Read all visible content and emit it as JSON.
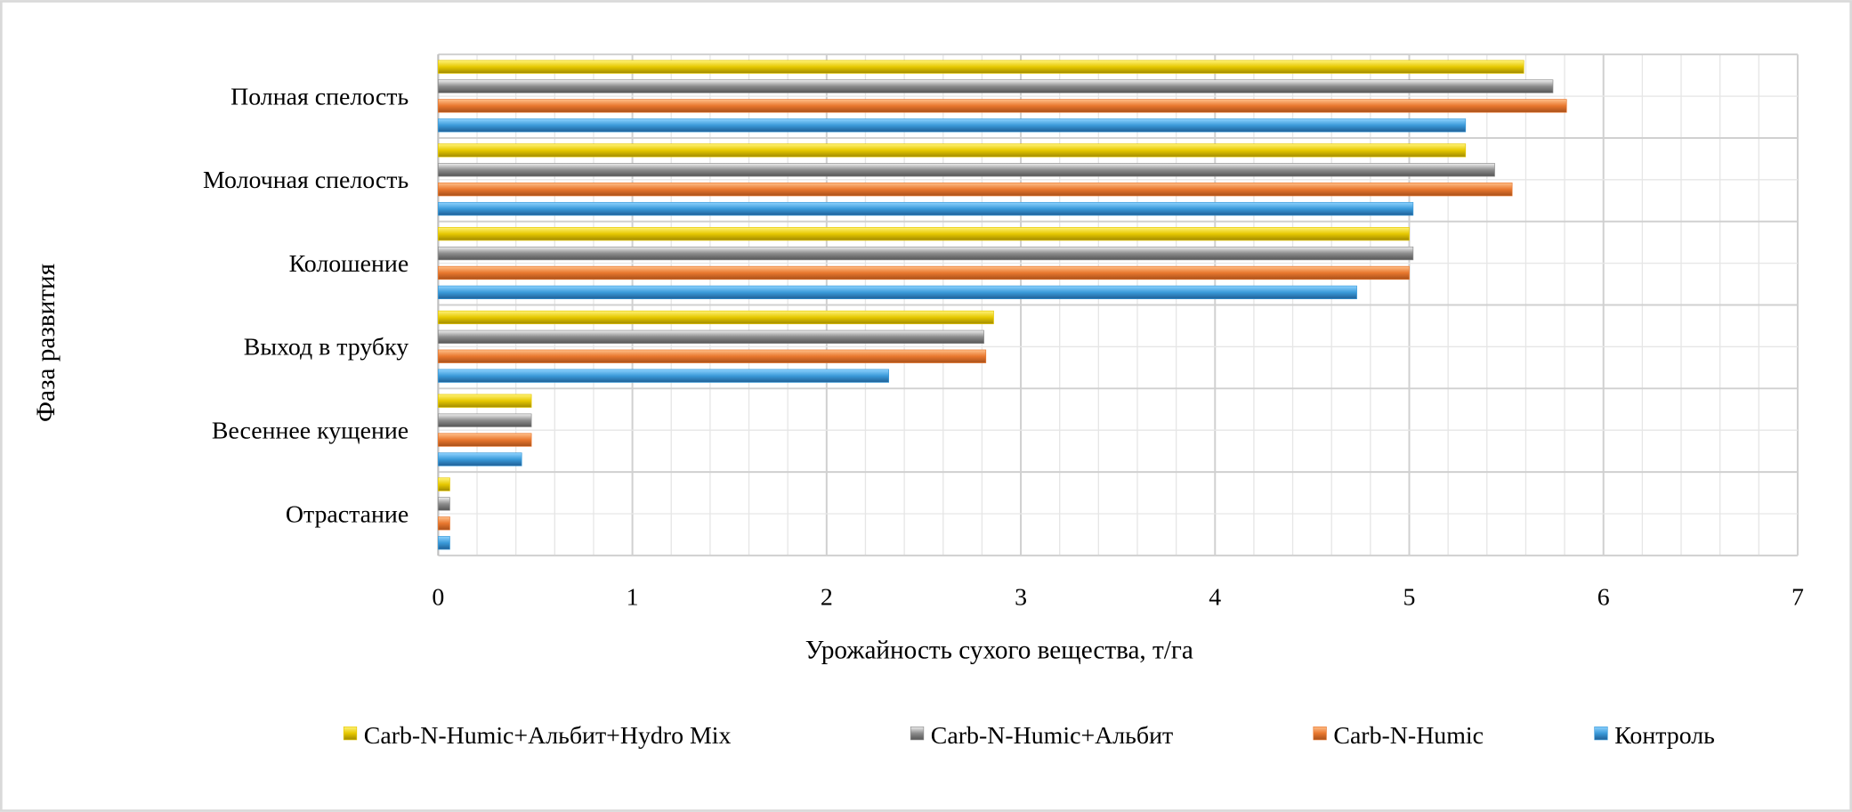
{
  "chart_data": {
    "type": "bar",
    "orientation": "horizontal",
    "title": "",
    "xlabel": "Урожайность сухого вещества, т/га",
    "ylabel": "Фаза развития",
    "xlim": [
      0,
      7
    ],
    "xticks": [
      "0",
      "1",
      "2",
      "3",
      "4",
      "5",
      "6",
      "7"
    ],
    "grid": true,
    "legend_position": "bottom",
    "categories": [
      "Отрастание",
      "Весеннее кущение",
      "Выход в трубку",
      "Колошение",
      "Молочная спелость",
      "Полная спелость"
    ],
    "series": [
      {
        "name": "Контроль",
        "color": "#3a9ad9",
        "values": [
          0.06,
          0.43,
          2.32,
          4.73,
          5.02,
          5.29
        ]
      },
      {
        "name": "Carb-N-Humic",
        "color": "#e8772e",
        "values": [
          0.06,
          0.48,
          2.82,
          5.0,
          5.53,
          5.81
        ]
      },
      {
        "name": "Carb-N-Humic+Альбит",
        "color": "#8c8c8c",
        "values": [
          0.06,
          0.48,
          2.81,
          5.02,
          5.44,
          5.74
        ]
      },
      {
        "name": "Carb-N-Humic+Альбит+Hydro Mix",
        "color": "#e6c800",
        "values": [
          0.06,
          0.48,
          2.86,
          5.0,
          5.29,
          5.59
        ]
      }
    ],
    "legend_order": [
      3,
      2,
      1,
      0
    ]
  }
}
